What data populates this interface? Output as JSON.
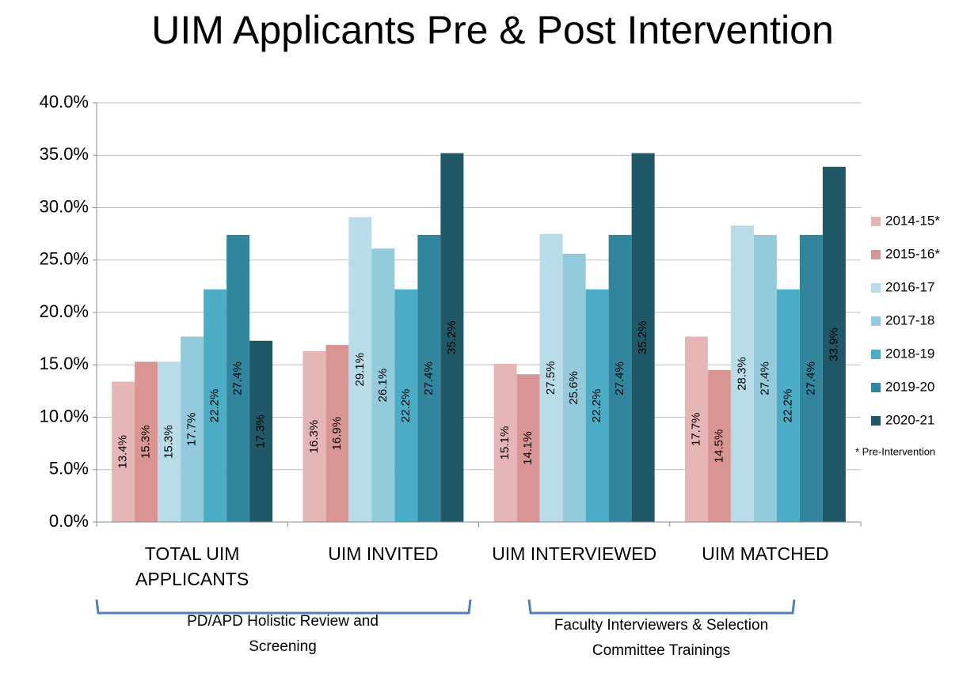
{
  "chart_data": {
    "type": "bar",
    "title": "UIM Applicants Pre & Post Intervention",
    "categories": [
      "TOTAL UIM APPLICANTS",
      "UIM INVITED",
      "UIM INTERVIEWED",
      "UIM MATCHED"
    ],
    "series": [
      {
        "name": "2014-15*",
        "color": "#e6b6b5",
        "values": [
          13.4,
          16.3,
          15.1,
          17.7
        ],
        "value_labels": [
          "13.4%",
          "16.3%",
          "15.1%",
          "17.7%"
        ]
      },
      {
        "name": "2015-16*",
        "color": "#d99593",
        "values": [
          15.3,
          16.9,
          14.1,
          14.5
        ],
        "value_labels": [
          "15.3%",
          "16.9%",
          "14.1%",
          "14.5%"
        ]
      },
      {
        "name": "2016-17",
        "color": "#b9dde8",
        "values": [
          15.3,
          29.1,
          27.5,
          28.3
        ],
        "value_labels": [
          "15.3%",
          "29.1%",
          "27.5%",
          "28.3%"
        ]
      },
      {
        "name": "2017-18",
        "color": "#93cbdc",
        "values": [
          17.7,
          26.1,
          25.6,
          27.4
        ],
        "value_labels": [
          "17.7%",
          "26.1%",
          "25.6%",
          "27.4%"
        ]
      },
      {
        "name": "2018-19",
        "color": "#4bacc6",
        "values": [
          22.2,
          22.2,
          22.2,
          22.2
        ],
        "value_labels": [
          "22.2%",
          "22.2%",
          "22.2%",
          "22.2%"
        ]
      },
      {
        "name": "2019-20",
        "color": "#31859c",
        "values": [
          27.4,
          27.4,
          27.4,
          27.4
        ],
        "value_labels": [
          "27.4%",
          "27.4%",
          "27.4%",
          "27.4%"
        ]
      },
      {
        "name": "2020-21",
        "color": "#215868",
        "values": [
          17.3,
          35.2,
          35.2,
          33.9
        ],
        "value_labels": [
          "17.3%",
          "35.2%",
          "35.2%",
          "33.9%"
        ]
      }
    ],
    "ylim": [
      0,
      40
    ],
    "yticks": [
      {
        "value": 0,
        "label": "0.0%"
      },
      {
        "value": 5,
        "label": "5.0%"
      },
      {
        "value": 10,
        "label": "10.0%"
      },
      {
        "value": 15,
        "label": "15.0%"
      },
      {
        "value": 20,
        "label": "20.0%"
      },
      {
        "value": 25,
        "label": "25.0%"
      },
      {
        "value": 30,
        "label": "30.0%"
      },
      {
        "value": 35,
        "label": "35.0%"
      },
      {
        "value": 40,
        "label": "40.0%"
      }
    ],
    "grid": true,
    "legend": "right",
    "legend_note": "* Pre-Intervention",
    "annotations": [
      "PD/APD Holistic Review and Screening",
      "Faculty Interviewers & Selection Committee Trainings"
    ]
  }
}
